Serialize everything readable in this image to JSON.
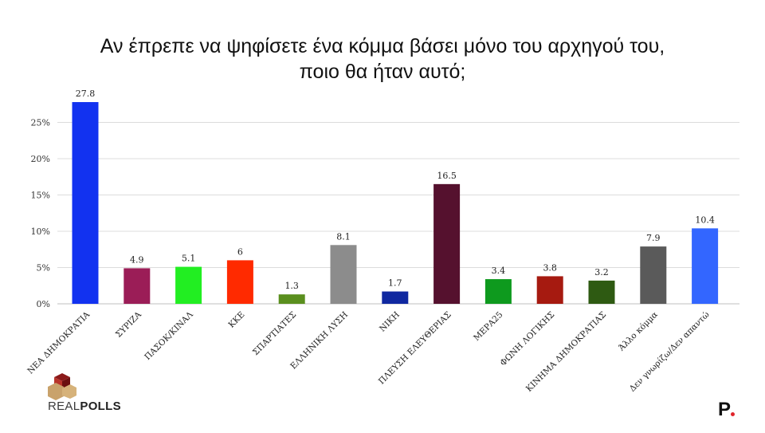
{
  "chart_data": {
    "type": "bar",
    "title_lines": [
      "Αν έπρεπε να ψηφίσετε ένα κόμμα βάσει μόνο του αρχηγού του,",
      "ποιο θα ήταν αυτό;"
    ],
    "categories": [
      "ΝΕΑ ΔΗΜΟΚΡΑΤΙΑ",
      "ΣΥΡΙΖΑ",
      "ΠΑΣΟΚ/ΚΙΝΑΛ",
      "ΚΚΕ",
      "ΣΠΑΡΤΙΑΤΕΣ",
      "ΕΛΛΗΝΙΚΗ ΛΥΣΗ",
      "ΝΙΚΗ",
      "ΠΛΕΥΣΗ ΕΛΕΥΘΕΡΙΑΣ",
      "ΜΕΡΑ25",
      "ΦΩΝΗ ΛΟΓΙΚΗΣ",
      "ΚΙΝΗΜΑ ΔΗΜΟΚΡΑΤΙΑΣ",
      "Άλλο κόμμα",
      "Δεν γνωρίζω/Δεν απαντώ"
    ],
    "values": [
      27.8,
      4.9,
      5.1,
      6,
      1.3,
      8.1,
      1.7,
      16.5,
      3.4,
      3.8,
      3.2,
      7.9,
      10.4
    ],
    "value_labels": [
      "27.8",
      "4.9",
      "5.1",
      "6",
      "1.3",
      "8.1",
      "1.7",
      "16.5",
      "3.4",
      "3.8",
      "3.2",
      "7.9",
      "10.4"
    ],
    "colors": [
      "#1232f0",
      "#9b1d57",
      "#22ee22",
      "#ff2a00",
      "#5a8f1e",
      "#8c8c8c",
      "#1028a0",
      "#55112e",
      "#0e9a1e",
      "#a61a10",
      "#2e5a12",
      "#5a5a5a",
      "#3366ff"
    ],
    "yticks": [
      0,
      5,
      10,
      15,
      20,
      25
    ],
    "ytick_labels": [
      "0%",
      "5%",
      "10%",
      "15%",
      "20%",
      "25%"
    ],
    "ylim": [
      0,
      28
    ],
    "grid": true,
    "legend": "none"
  },
  "branding": {
    "logo_text_light": "REAL",
    "logo_text_bold": "POLLS",
    "brand_mark": "P"
  }
}
